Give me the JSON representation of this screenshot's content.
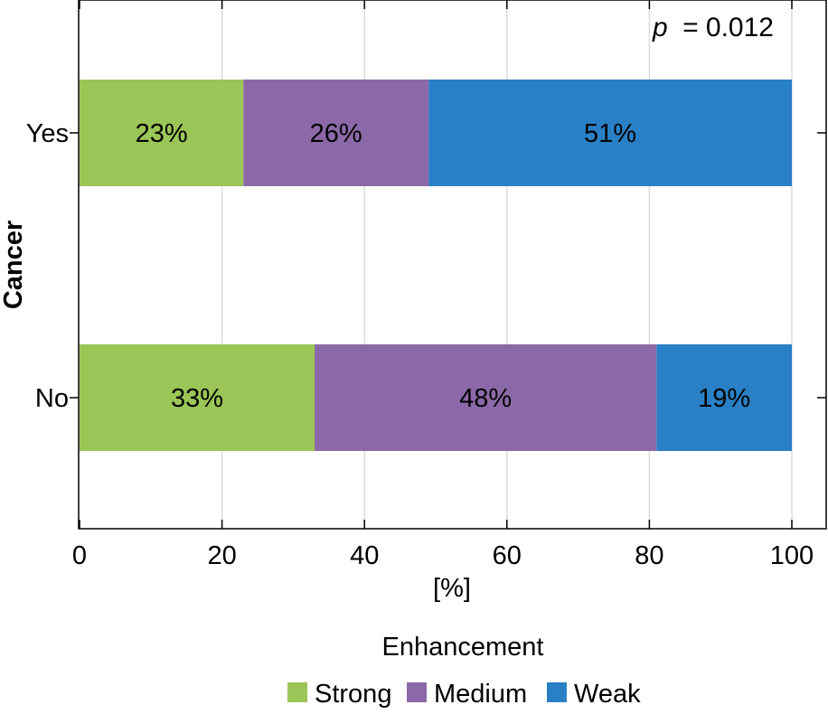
{
  "chart_data": {
    "type": "bar",
    "orientation": "horizontal",
    "stacked": true,
    "categories": [
      "Yes",
      "No"
    ],
    "series": [
      {
        "name": "Strong",
        "values": [
          23,
          33
        ],
        "labels": [
          "23%",
          "33%"
        ],
        "color": "#9bc657"
      },
      {
        "name": "Medium",
        "values": [
          26,
          48
        ],
        "labels": [
          "26%",
          "48%"
        ],
        "color": "#8b69a8"
      },
      {
        "name": "Weak",
        "values": [
          51,
          19
        ],
        "labels": [
          "51%",
          "19%"
        ],
        "color": "#2a80c6"
      }
    ],
    "xlabel": "[%]",
    "ylabel": "Cancer",
    "xlim": [
      0,
      100
    ],
    "xticks": [
      0,
      20,
      40,
      60,
      80,
      100
    ],
    "grid": "vertical",
    "annotation": {
      "prefix": "p",
      "text": "= 0.012"
    },
    "legend": {
      "title": "Enhancement",
      "position": "bottom"
    }
  }
}
